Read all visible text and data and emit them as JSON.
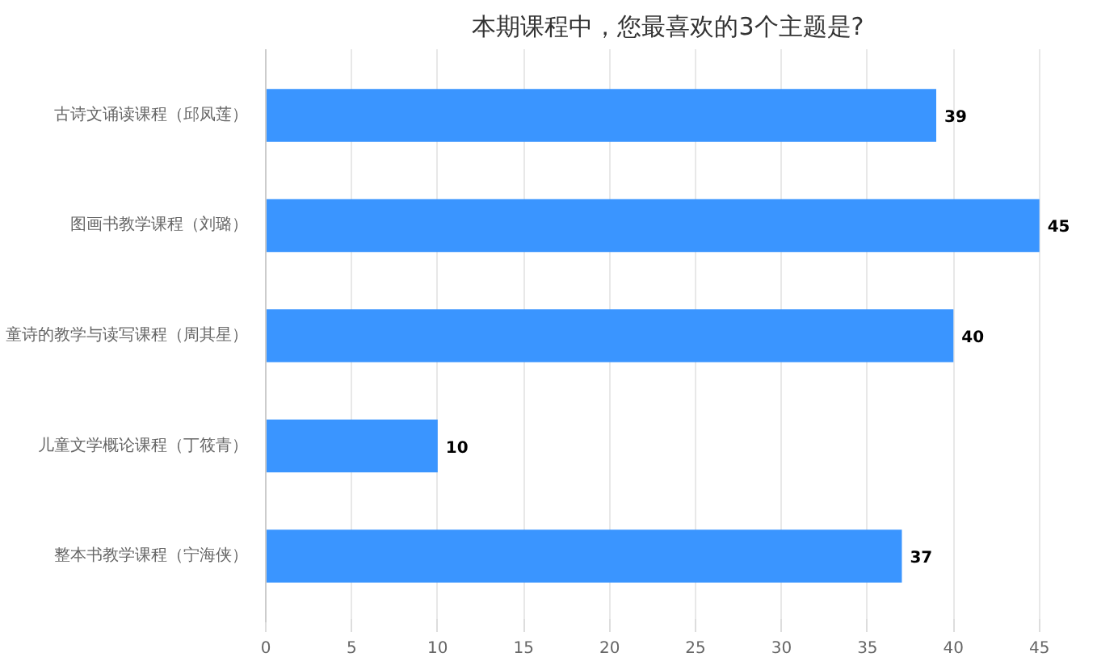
{
  "chart_data": {
    "type": "bar",
    "orientation": "horizontal",
    "title": "本期课程中，您最喜欢的3个主题是?",
    "categories": [
      "古诗文诵读课程（邱凤莲）",
      "图画书教学课程（刘璐）",
      "童诗的教学与读写课程（周其星）",
      "儿童文学概论课程（丁筱青）",
      "整本书教学课程（宁海侠）"
    ],
    "values": [
      39,
      45,
      40,
      10,
      37
    ],
    "color": "#3a95ff",
    "data_labels": true,
    "xlim": [
      0,
      45
    ],
    "xticks": [
      0,
      5,
      10,
      15,
      20,
      25,
      30,
      35,
      40,
      45
    ],
    "grid": "x"
  }
}
